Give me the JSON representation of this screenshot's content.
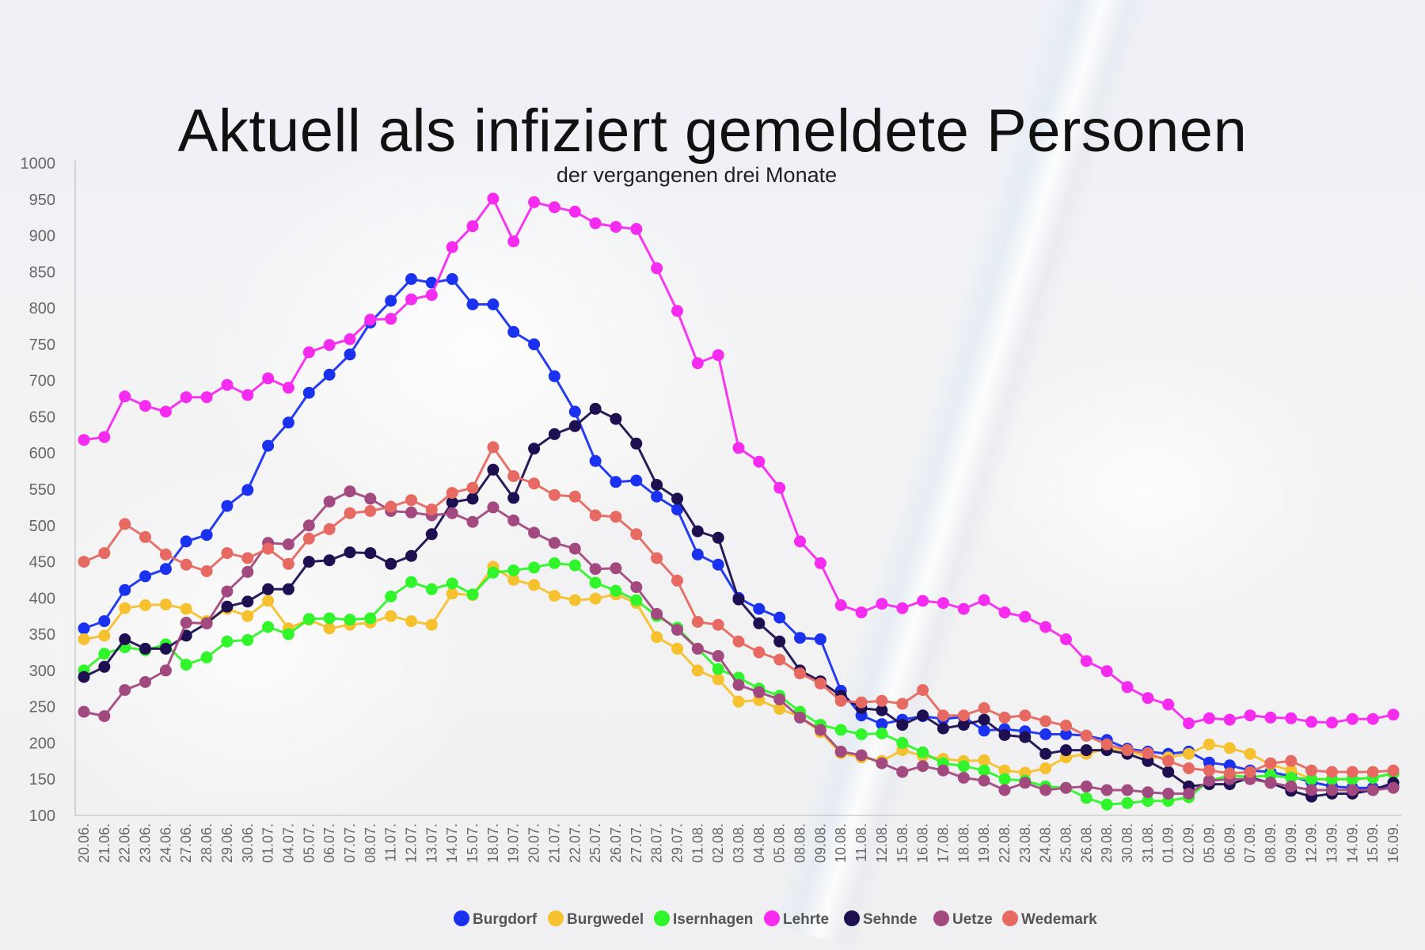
{
  "chart_data": {
    "type": "line",
    "title": "Aktuell als infiziert gemeldete Personen",
    "subtitle": "der vergangenen drei Monate",
    "xlabel": "",
    "ylabel": "",
    "ylim": [
      100,
      1000
    ],
    "yticks": [
      100,
      150,
      200,
      250,
      300,
      350,
      400,
      450,
      500,
      550,
      600,
      650,
      700,
      750,
      800,
      850,
      900,
      950,
      1000
    ],
    "grid": false,
    "legend_position": "bottom",
    "categories": [
      "20.06.",
      "21.06.",
      "22.06.",
      "23.06.",
      "24.06.",
      "27.06.",
      "28.06.",
      "29.06.",
      "30.06.",
      "01.07.",
      "04.07.",
      "05.07.",
      "06.07.",
      "07.07.",
      "08.07.",
      "11.07.",
      "12.07.",
      "13.07.",
      "14.07.",
      "15.07.",
      "18.07.",
      "19.07.",
      "20.07.",
      "21.07.",
      "22.07.",
      "25.07.",
      "26.07.",
      "27.07.",
      "28.07.",
      "29.07.",
      "01.08.",
      "02.08.",
      "03.08.",
      "04.08.",
      "05.08.",
      "08.08.",
      "09.08.",
      "10.08.",
      "11.08.",
      "12.08.",
      "15.08.",
      "16.08.",
      "17.08.",
      "18.08.",
      "19.08.",
      "22.08.",
      "23.08.",
      "24.08.",
      "25.08.",
      "26.08.",
      "29.08.",
      "30.08.",
      "31.08.",
      "01.09.",
      "02.09.",
      "05.09.",
      "06.09.",
      "07.09.",
      "08.09.",
      "09.09.",
      "12.09.",
      "13.09.",
      "14.09.",
      "15.09.",
      "16.09."
    ],
    "series": [
      {
        "name": "Burgdorf",
        "color": "#1a32f0",
        "values": [
          358,
          368,
          411,
          430,
          440,
          478,
          487,
          527,
          549,
          610,
          642,
          683,
          708,
          736,
          780,
          810,
          840,
          835,
          840,
          805,
          805,
          767,
          750,
          706,
          657,
          589,
          560,
          562,
          540,
          522,
          460,
          446,
          400,
          385,
          373,
          345,
          343,
          272,
          238,
          226,
          232,
          237,
          233,
          236,
          217,
          219,
          216,
          212,
          212,
          210,
          204,
          192,
          188,
          185,
          188,
          173,
          169,
          162,
          160,
          154,
          146,
          140,
          138,
          138,
          140
        ]
      },
      {
        "name": "Burgwedel",
        "color": "#f5c12e",
        "values": [
          343,
          348,
          386,
          390,
          391,
          385,
          368,
          385,
          375,
          396,
          358,
          370,
          358,
          363,
          366,
          375,
          368,
          363,
          406,
          404,
          443,
          425,
          418,
          403,
          397,
          399,
          405,
          393,
          346,
          330,
          300,
          288,
          257,
          259,
          247,
          236,
          215,
          186,
          180,
          175,
          190,
          182,
          178,
          175,
          176,
          162,
          159,
          165,
          180,
          185,
          192,
          190,
          180,
          180,
          185,
          198,
          193,
          185,
          170,
          162,
          150,
          150,
          150,
          152,
          158
        ]
      },
      {
        "name": "Isernhagen",
        "color": "#2ff52a",
        "values": [
          300,
          323,
          332,
          328,
          336,
          308,
          318,
          340,
          342,
          360,
          350,
          371,
          372,
          370,
          372,
          402,
          422,
          412,
          420,
          405,
          435,
          438,
          442,
          448,
          445,
          421,
          410,
          397,
          375,
          359,
          330,
          302,
          290,
          275,
          265,
          243,
          225,
          218,
          212,
          213,
          200,
          187,
          172,
          168,
          162,
          150,
          148,
          140,
          138,
          124,
          115,
          117,
          120,
          120,
          125,
          148,
          155,
          153,
          155,
          152,
          150,
          150,
          150,
          152,
          158
        ]
      },
      {
        "name": "Lehrte",
        "color": "#f52cf0",
        "values": [
          618,
          622,
          678,
          665,
          657,
          677,
          677,
          694,
          680,
          703,
          690,
          739,
          749,
          757,
          784,
          785,
          812,
          818,
          884,
          913,
          951,
          892,
          946,
          939,
          933,
          917,
          912,
          909,
          855,
          796,
          724,
          735,
          607,
          588,
          552,
          478,
          448,
          390,
          380,
          392,
          386,
          396,
          393,
          385,
          397,
          380,
          374,
          360,
          343,
          313,
          299,
          277,
          262,
          253,
          227,
          234,
          232,
          238,
          235,
          234,
          229,
          228,
          233,
          233,
          239
        ]
      },
      {
        "name": "Sehnde",
        "color": "#1e1050",
        "values": [
          291,
          305,
          343,
          330,
          330,
          348,
          365,
          388,
          395,
          412,
          412,
          450,
          452,
          463,
          462,
          447,
          458,
          488,
          532,
          537,
          577,
          538,
          606,
          626,
          637,
          661,
          647,
          613,
          556,
          537,
          492,
          483,
          398,
          365,
          340,
          300,
          285,
          265,
          248,
          245,
          225,
          238,
          220,
          225,
          232,
          211,
          208,
          185,
          190,
          190,
          190,
          185,
          175,
          160,
          140,
          143,
          143,
          152,
          145,
          134,
          126,
          130,
          130,
          135,
          145
        ]
      },
      {
        "name": "Uetze",
        "color": "#a24a80",
        "values": [
          243,
          237,
          273,
          284,
          300,
          366,
          365,
          409,
          436,
          476,
          474,
          500,
          533,
          547,
          537,
          520,
          518,
          514,
          517,
          505,
          525,
          507,
          490,
          476,
          468,
          440,
          441,
          415,
          378,
          356,
          330,
          320,
          280,
          270,
          260,
          235,
          218,
          188,
          183,
          172,
          160,
          168,
          162,
          152,
          148,
          135,
          145,
          135,
          138,
          140,
          135,
          135,
          132,
          130,
          130,
          148,
          150,
          150,
          145,
          140,
          135,
          135,
          135,
          135,
          138
        ]
      },
      {
        "name": "Wedemark",
        "color": "#e66a62",
        "values": [
          450,
          462,
          502,
          484,
          460,
          446,
          437,
          462,
          455,
          468,
          447,
          482,
          495,
          517,
          520,
          526,
          535,
          522,
          545,
          552,
          608,
          568,
          558,
          542,
          540,
          514,
          512,
          488,
          455,
          424,
          367,
          363,
          340,
          325,
          315,
          296,
          282,
          258,
          256,
          258,
          254,
          273,
          238,
          238,
          248,
          235,
          238,
          230,
          224,
          210,
          198,
          190,
          186,
          175,
          165,
          162,
          158,
          160,
          172,
          175,
          162,
          160,
          160,
          160,
          162
        ]
      }
    ]
  }
}
